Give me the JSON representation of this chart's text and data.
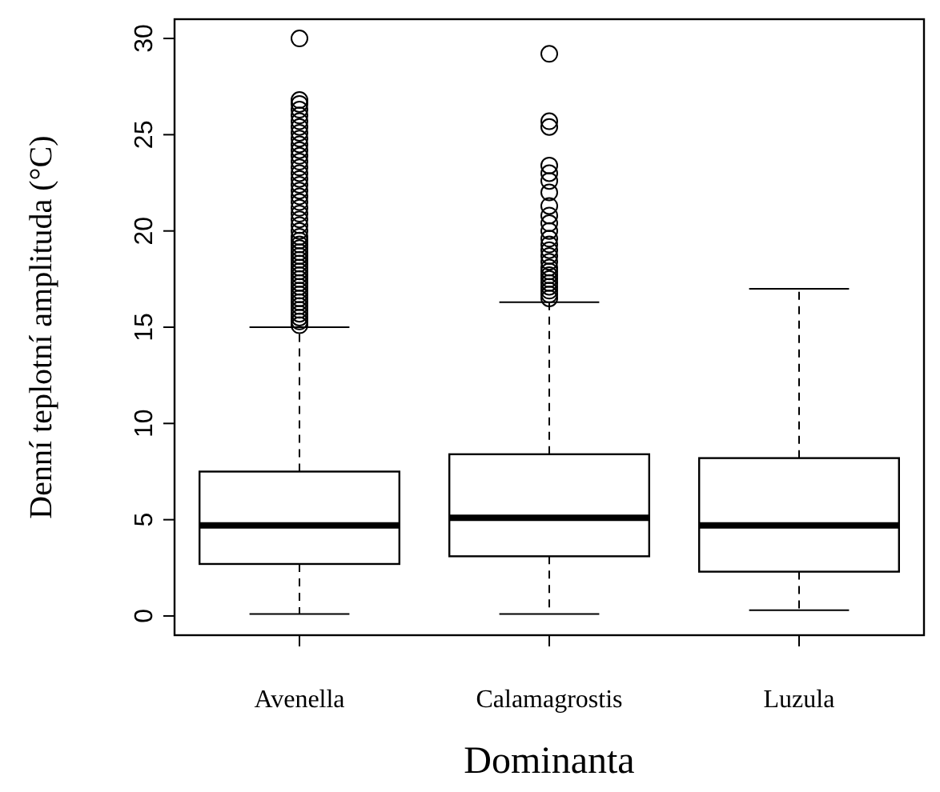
{
  "chart_data": {
    "type": "box",
    "xlabel": "Dominanta",
    "ylabel": "Denní teplotní amplituda  (°C)",
    "categories": [
      "Avenella",
      "Calamagrostis",
      "Luzula"
    ],
    "boxes": [
      {
        "low": 0.1,
        "q1": 2.7,
        "median": 4.7,
        "q3": 7.5,
        "high": 15,
        "outliers": [
          15.1,
          15.3,
          15.5,
          15.7,
          15.9,
          16.1,
          16.3,
          16.5,
          16.7,
          16.9,
          17.1,
          17.3,
          17.5,
          17.7,
          17.9,
          18.1,
          18.3,
          18.5,
          18.7,
          18.9,
          19.1,
          19.3,
          19.5,
          19.7,
          20,
          20.3,
          20.6,
          20.9,
          21.2,
          21.5,
          21.8,
          22.1,
          22.4,
          22.7,
          23,
          23.3,
          23.6,
          23.9,
          24.2,
          24.5,
          24.8,
          25.1,
          25.4,
          25.7,
          26,
          26.3,
          26.6,
          26.8,
          30
        ]
      },
      {
        "low": 0.1,
        "q1": 3.1,
        "median": 5.1,
        "q3": 8.4,
        "high": 16.3,
        "outliers": [
          16.5,
          16.7,
          16.9,
          17.1,
          17.3,
          17.5,
          17.7,
          17.9,
          18.1,
          18.4,
          18.7,
          19,
          19.3,
          19.6,
          20,
          20.4,
          20.8,
          21.3,
          22,
          22.6,
          23,
          23.4,
          25.4,
          25.7,
          29.2
        ]
      },
      {
        "low": 0.3,
        "q1": 2.3,
        "median": 4.7,
        "q3": 8.2,
        "high": 17
      }
    ],
    "ylim": [
      -1,
      31
    ],
    "yticks": [
      0,
      5,
      10,
      15,
      20,
      25,
      30
    ],
    "grid": false
  }
}
